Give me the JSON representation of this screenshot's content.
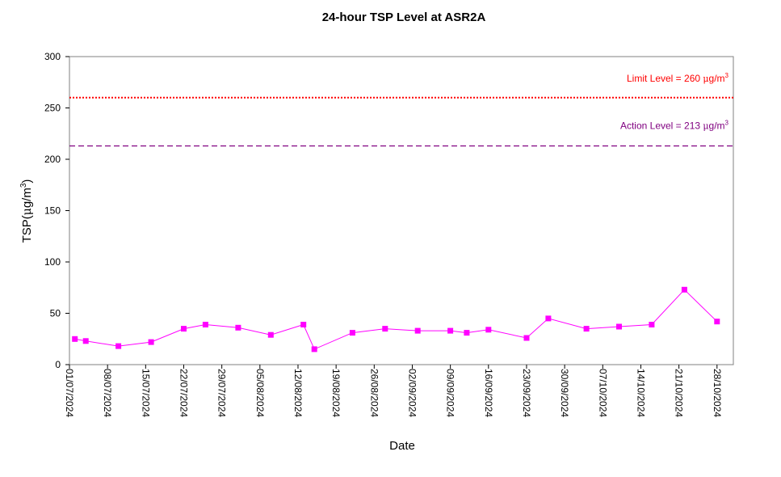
{
  "chart_data": {
    "type": "line",
    "title": "24-hour TSP Level at ASR2A",
    "xlabel": "Date",
    "ylabel": {
      "prefix": "TSP(",
      "mu": "μ",
      "unit": "g/m",
      "exp": "3",
      "suffix": ")"
    },
    "ylim": [
      0,
      300
    ],
    "yticks": [
      0,
      50,
      100,
      150,
      200,
      250,
      300
    ],
    "xlim": [
      "2024-07-01",
      "2024-10-31"
    ],
    "xticks": [
      "01/07/2024",
      "08/07/2024",
      "15/07/2024",
      "22/07/2024",
      "29/07/2024",
      "05/08/2024",
      "12/08/2024",
      "19/08/2024",
      "26/08/2024",
      "02/09/2024",
      "09/09/2024",
      "16/09/2024",
      "23/09/2024",
      "30/09/2024",
      "07/10/2024",
      "14/10/2024",
      "21/10/2024",
      "28/10/2024"
    ],
    "grid": false,
    "series": [
      {
        "color": "#ff00ff",
        "marker": "square",
        "x": [
          "2024-07-02",
          "2024-07-04",
          "2024-07-10",
          "2024-07-16",
          "2024-07-22",
          "2024-07-26",
          "2024-08-01",
          "2024-08-07",
          "2024-08-13",
          "2024-08-15",
          "2024-08-22",
          "2024-08-28",
          "2024-09-03",
          "2024-09-09",
          "2024-09-12",
          "2024-09-16",
          "2024-09-23",
          "2024-09-27",
          "2024-10-04",
          "2024-10-10",
          "2024-10-16",
          "2024-10-22",
          "2024-10-28"
        ],
        "values": [
          25,
          23,
          18,
          22,
          35,
          39,
          36,
          29,
          39,
          15,
          31,
          35,
          33,
          33,
          31,
          34,
          26,
          45,
          35,
          37,
          39,
          73,
          42
        ]
      }
    ],
    "reference_lines": [
      {
        "label": "Limit Level  = 260 ",
        "mu": "μ",
        "unit": "g/m",
        "exp": "3",
        "value": 260,
        "color": "#ff0000",
        "style": "dotted"
      },
      {
        "label": "Action Level  = 213 ",
        "mu": "μ",
        "unit": "g/m",
        "exp": "3",
        "value": 213,
        "color": "#800080",
        "style": "dashed"
      }
    ]
  }
}
